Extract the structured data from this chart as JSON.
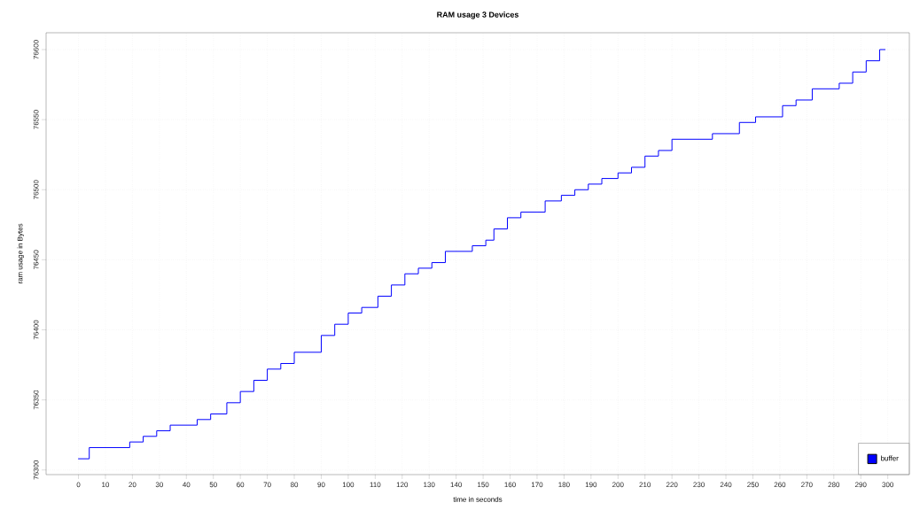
{
  "chart_data": {
    "type": "step",
    "title": "RAM usage 3 Devices",
    "xlabel": "time in seconds",
    "ylabel": "ram usage in Bytes",
    "xlim": [
      -12,
      308
    ],
    "ylim": [
      76296.7,
      76612
    ],
    "xticks": [
      0,
      10,
      20,
      30,
      40,
      50,
      60,
      70,
      80,
      90,
      100,
      110,
      120,
      130,
      140,
      150,
      160,
      170,
      180,
      190,
      200,
      210,
      220,
      230,
      240,
      250,
      260,
      270,
      280,
      290,
      300
    ],
    "yticks": [
      76300,
      76350,
      76400,
      76450,
      76500,
      76550,
      76600
    ],
    "grid": true,
    "legend": "bottom right",
    "series": [
      {
        "name": "buffer",
        "color": "#0000ff",
        "x": [
          0,
          4,
          19,
          24,
          29,
          34,
          44,
          49,
          55,
          60,
          65,
          70,
          75,
          80,
          90,
          95,
          100,
          105,
          111,
          116,
          121,
          126,
          131,
          136,
          146,
          151,
          154,
          159,
          164,
          173,
          179,
          184,
          189,
          194,
          200,
          205,
          210,
          215,
          220,
          235,
          245,
          251,
          261,
          266,
          272,
          282,
          287,
          292,
          297,
          299
        ],
        "values": [
          76308,
          76316,
          76320,
          76324,
          76328,
          76332,
          76336,
          76340,
          76348,
          76356,
          76364,
          76372,
          76376,
          76384,
          76396,
          76404,
          76412,
          76416,
          76424,
          76432,
          76440,
          76444,
          76448,
          76456,
          76460,
          76464,
          76472,
          76480,
          76484,
          76492,
          76496,
          76500,
          76504,
          76508,
          76512,
          76516,
          76524,
          76528,
          76536,
          76540,
          76548,
          76552,
          76560,
          76564,
          76572,
          76576,
          76584,
          76592,
          76600,
          76600
        ]
      }
    ]
  }
}
